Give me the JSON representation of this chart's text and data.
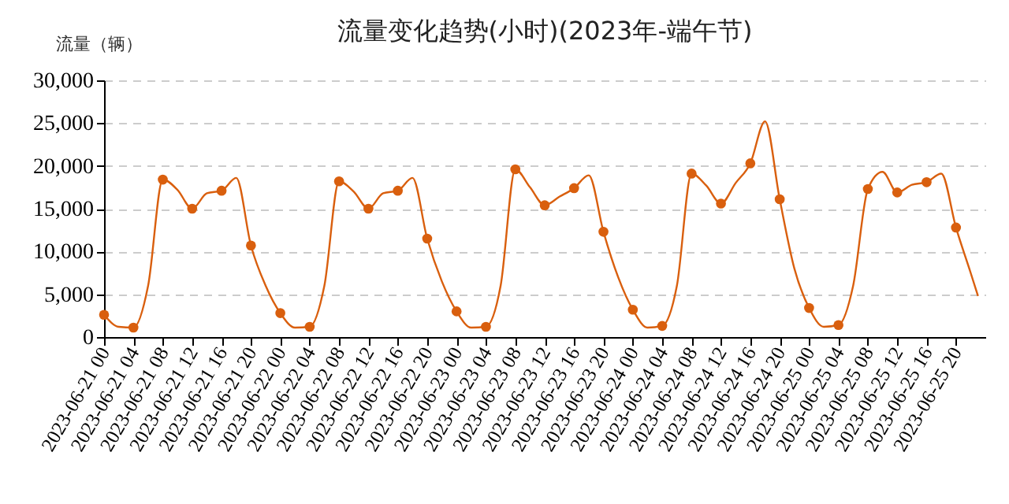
{
  "chart_data": {
    "type": "line",
    "title": "流量变化趋势(小时)(2023年-端午节)",
    "ylabel": "流量（辆）",
    "xlim": [
      "2023-06-21T00:00",
      "2023-06-26T00:00"
    ],
    "xticks": [
      {
        "value": "2023-06-21T00:00",
        "label": "2023-06-21 00"
      },
      {
        "value": "2023-06-21T04:00",
        "label": "2023-06-21 04"
      },
      {
        "value": "2023-06-21T08:00",
        "label": "2023-06-21 08"
      },
      {
        "value": "2023-06-21T12:00",
        "label": "2023-06-21 12"
      },
      {
        "value": "2023-06-21T16:00",
        "label": "2023-06-21 16"
      },
      {
        "value": "2023-06-21T20:00",
        "label": "2023-06-21 20"
      },
      {
        "value": "2023-06-22T00:00",
        "label": "2023-06-22 00"
      },
      {
        "value": "2023-06-22T04:00",
        "label": "2023-06-22 04"
      },
      {
        "value": "2023-06-22T08:00",
        "label": "2023-06-22 08"
      },
      {
        "value": "2023-06-22T12:00",
        "label": "2023-06-22 12"
      },
      {
        "value": "2023-06-22T16:00",
        "label": "2023-06-22 16"
      },
      {
        "value": "2023-06-22T20:00",
        "label": "2023-06-22 20"
      },
      {
        "value": "2023-06-23T00:00",
        "label": "2023-06-23 00"
      },
      {
        "value": "2023-06-23T04:00",
        "label": "2023-06-23 04"
      },
      {
        "value": "2023-06-23T08:00",
        "label": "2023-06-23 08"
      },
      {
        "value": "2023-06-23T12:00",
        "label": "2023-06-23 12"
      },
      {
        "value": "2023-06-23T16:00",
        "label": "2023-06-23 16"
      },
      {
        "value": "2023-06-23T20:00",
        "label": "2023-06-23 20"
      },
      {
        "value": "2023-06-24T00:00",
        "label": "2023-06-24 00"
      },
      {
        "value": "2023-06-24T04:00",
        "label": "2023-06-24 04"
      },
      {
        "value": "2023-06-24T08:00",
        "label": "2023-06-24 08"
      },
      {
        "value": "2023-06-24T12:00",
        "label": "2023-06-24 12"
      },
      {
        "value": "2023-06-24T16:00",
        "label": "2023-06-24 16"
      },
      {
        "value": "2023-06-24T20:00",
        "label": "2023-06-24 20"
      },
      {
        "value": "2023-06-25T00:00",
        "label": "2023-06-25 00"
      },
      {
        "value": "2023-06-25T04:00",
        "label": "2023-06-25 04"
      },
      {
        "value": "2023-06-25T08:00",
        "label": "2023-06-25 08"
      },
      {
        "value": "2023-06-25T12:00",
        "label": "2023-06-25 12"
      },
      {
        "value": "2023-06-25T16:00",
        "label": "2023-06-25 16"
      },
      {
        "value": "2023-06-25T20:00",
        "label": "2023-06-25 20"
      }
    ],
    "ylim": [
      0,
      30000
    ],
    "yticks": [
      {
        "value": 0,
        "label": "0"
      },
      {
        "value": 5000,
        "label": "5,000"
      },
      {
        "value": 10000,
        "label": "10,000"
      },
      {
        "value": 15000,
        "label": "15,000"
      },
      {
        "value": 20000,
        "label": "20,000"
      },
      {
        "value": 25000,
        "label": "25,000"
      },
      {
        "value": 30000,
        "label": "30,000"
      }
    ],
    "grid": "y",
    "legend": false,
    "series": [
      {
        "type": "line",
        "color": "#d95f0e",
        "line_style": "solid",
        "marker": "none",
        "x": [
          "2023-06-21T00:00",
          "2023-06-21T02:00",
          "2023-06-21T04:00",
          "2023-06-21T06:00",
          "2023-06-21T08:00",
          "2023-06-21T10:00",
          "2023-06-21T12:00",
          "2023-06-21T14:00",
          "2023-06-21T16:00",
          "2023-06-21T18:00",
          "2023-06-21T20:00",
          "2023-06-21T22:00",
          "2023-06-22T00:00",
          "2023-06-22T02:00",
          "2023-06-22T04:00",
          "2023-06-22T06:00",
          "2023-06-22T08:00",
          "2023-06-22T10:00",
          "2023-06-22T12:00",
          "2023-06-22T14:00",
          "2023-06-22T16:00",
          "2023-06-22T18:00",
          "2023-06-22T20:00",
          "2023-06-22T22:00",
          "2023-06-23T00:00",
          "2023-06-23T02:00",
          "2023-06-23T04:00",
          "2023-06-23T06:00",
          "2023-06-23T08:00",
          "2023-06-23T10:00",
          "2023-06-23T12:00",
          "2023-06-23T14:00",
          "2023-06-23T16:00",
          "2023-06-23T18:00",
          "2023-06-23T20:00",
          "2023-06-23T22:00",
          "2023-06-24T00:00",
          "2023-06-24T02:00",
          "2023-06-24T04:00",
          "2023-06-24T06:00",
          "2023-06-24T08:00",
          "2023-06-24T10:00",
          "2023-06-24T12:00",
          "2023-06-24T14:00",
          "2023-06-24T16:00",
          "2023-06-24T18:00",
          "2023-06-24T20:00",
          "2023-06-24T22:00",
          "2023-06-25T00:00",
          "2023-06-25T02:00",
          "2023-06-25T04:00",
          "2023-06-25T06:00",
          "2023-06-25T08:00",
          "2023-06-25T10:00",
          "2023-06-25T12:00",
          "2023-06-25T14:00",
          "2023-06-25T16:00",
          "2023-06-25T18:00",
          "2023-06-25T20:00",
          "2023-06-25T22:00",
          "2023-06-25T23:00"
        ],
        "values": [
          2600,
          1200,
          1100,
          6000,
          18400,
          17200,
          15000,
          16800,
          17100,
          18600,
          10700,
          6000,
          2800,
          1100,
          1200,
          6000,
          18200,
          17000,
          15000,
          16800,
          17100,
          18600,
          11500,
          6500,
          3000,
          1100,
          1200,
          6000,
          19600,
          17500,
          15400,
          16400,
          17400,
          18900,
          12300,
          7000,
          3200,
          1100,
          1300,
          6000,
          19100,
          17700,
          15600,
          18000,
          20300,
          25200,
          16100,
          8000,
          3400,
          1200,
          1400,
          6000,
          17300,
          19300,
          16900,
          17800,
          18100,
          19100,
          12800,
          7500,
          4800
        ]
      },
      {
        "type": "scatter",
        "color": "#d95f0e",
        "marker": "circle",
        "x": [
          "2023-06-21T00:00",
          "2023-06-21T04:00",
          "2023-06-21T08:00",
          "2023-06-21T12:00",
          "2023-06-21T16:00",
          "2023-06-21T20:00",
          "2023-06-22T00:00",
          "2023-06-22T04:00",
          "2023-06-22T08:00",
          "2023-06-22T12:00",
          "2023-06-22T16:00",
          "2023-06-22T20:00",
          "2023-06-23T00:00",
          "2023-06-23T04:00",
          "2023-06-23T08:00",
          "2023-06-23T12:00",
          "2023-06-23T16:00",
          "2023-06-23T20:00",
          "2023-06-24T00:00",
          "2023-06-24T04:00",
          "2023-06-24T08:00",
          "2023-06-24T12:00",
          "2023-06-24T16:00",
          "2023-06-24T20:00",
          "2023-06-25T00:00",
          "2023-06-25T04:00",
          "2023-06-25T08:00",
          "2023-06-25T12:00",
          "2023-06-25T16:00",
          "2023-06-25T20:00"
        ],
        "values": [
          2600,
          1100,
          18400,
          15000,
          17100,
          10700,
          2800,
          1200,
          18200,
          15000,
          17100,
          11500,
          3000,
          1200,
          19600,
          15400,
          17400,
          12300,
          3200,
          1300,
          19100,
          15600,
          20300,
          16100,
          3400,
          1400,
          17300,
          16900,
          18100,
          12800
        ]
      }
    ]
  }
}
